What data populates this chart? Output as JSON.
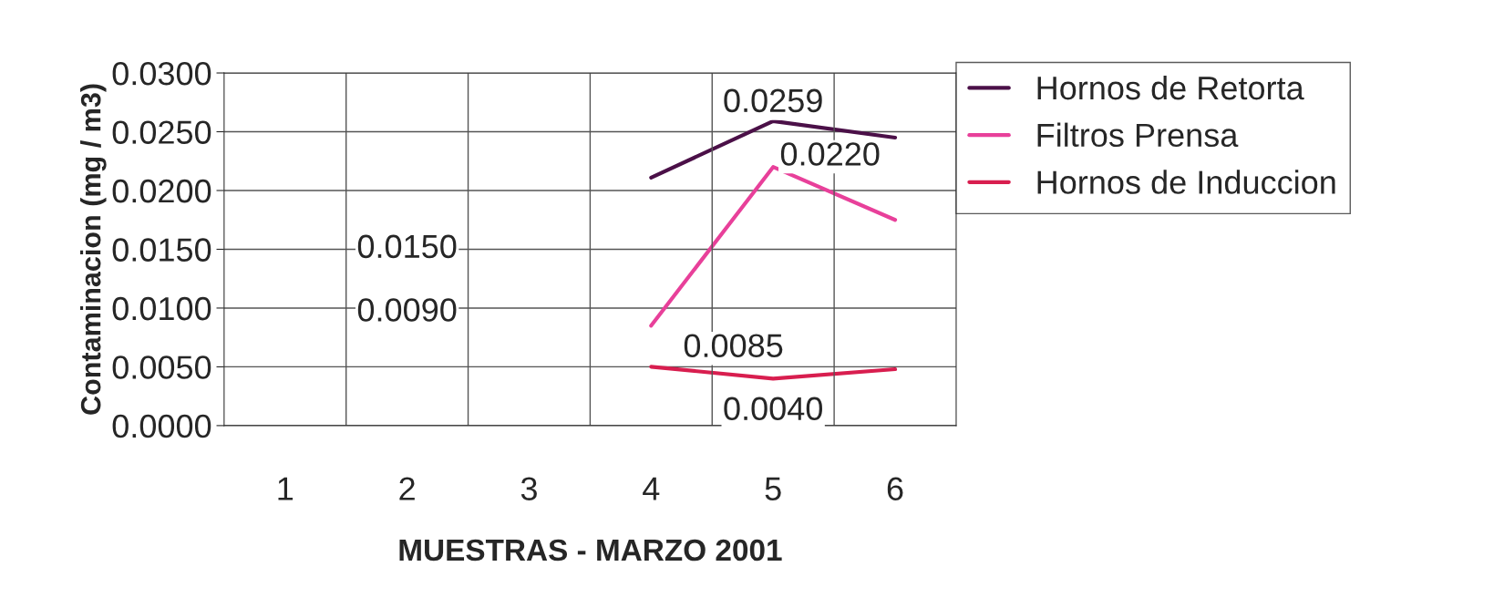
{
  "chart_data": {
    "type": "line",
    "xlabel": "MUESTRAS - MARZO 2001",
    "ylabel": "Contaminacion (mg / m3)",
    "categories": [
      "1",
      "2",
      "3",
      "4",
      "5",
      "6"
    ],
    "series": [
      {
        "name": "Hornos de Retorta",
        "color": "#4b1048",
        "values": [
          null,
          null,
          null,
          0.0211,
          0.0259,
          0.0245
        ],
        "value_labels": [
          null,
          null,
          null,
          null,
          "0.0259",
          null
        ]
      },
      {
        "name": "Filtros Prensa",
        "color": "#e8409a",
        "values": [
          null,
          null,
          null,
          0.0085,
          0.022,
          0.0175
        ],
        "value_labels": [
          null,
          null,
          null,
          "0.0085",
          "0.0220",
          null
        ]
      },
      {
        "name": "Hornos de Induccion",
        "color": "#d81e4f",
        "values": [
          null,
          null,
          null,
          0.005,
          0.004,
          0.0048
        ],
        "value_labels": [
          null,
          null,
          null,
          null,
          "0.0040",
          null
        ]
      }
    ],
    "annotations": [
      "0.0150",
      "0.0090"
    ],
    "ylim": [
      0,
      0.03
    ],
    "yticks": [
      {
        "value": 0,
        "label": "0.0000"
      },
      {
        "value": 0.005,
        "label": "0.0050"
      },
      {
        "value": 0.01,
        "label": "0.0100"
      },
      {
        "value": 0.015,
        "label": "0.0150"
      },
      {
        "value": 0.02,
        "label": "0.0200"
      },
      {
        "value": 0.025,
        "label": "0.0250"
      },
      {
        "value": 0.03,
        "label": "0.0300"
      }
    ],
    "grid": true,
    "legend": "right",
    "marker": "none",
    "line_style": "solid"
  }
}
